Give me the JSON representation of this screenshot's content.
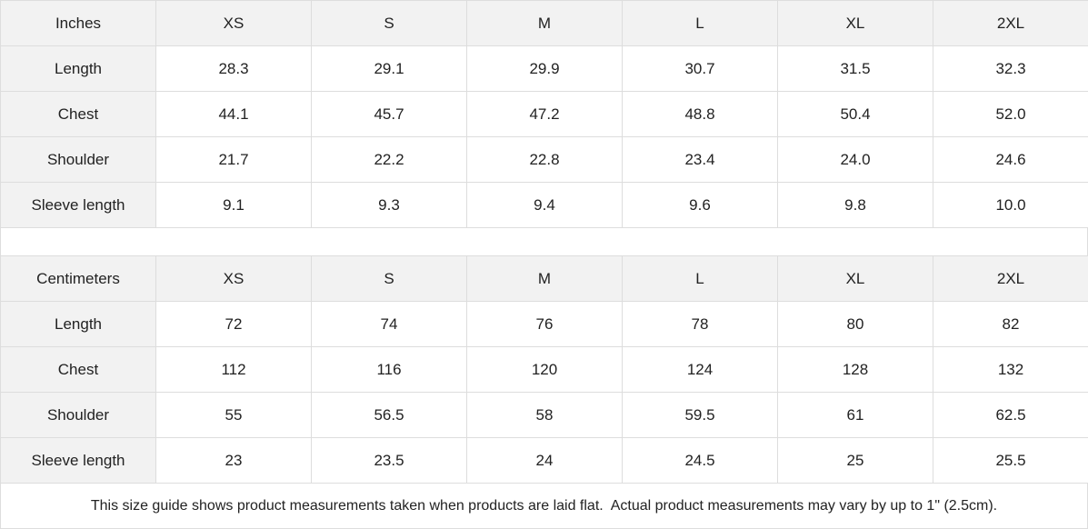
{
  "tables": [
    {
      "header": [
        "Inches",
        "XS",
        "S",
        "M",
        "L",
        "XL",
        "2XL"
      ],
      "rows": [
        [
          "Length",
          "28.3",
          "29.1",
          "29.9",
          "30.7",
          "31.5",
          "32.3"
        ],
        [
          "Chest",
          "44.1",
          "45.7",
          "47.2",
          "48.8",
          "50.4",
          "52.0"
        ],
        [
          "Shoulder",
          "21.7",
          "22.2",
          "22.8",
          "23.4",
          "24.0",
          "24.6"
        ],
        [
          "Sleeve length",
          "9.1",
          "9.3",
          "9.4",
          "9.6",
          "9.8",
          "10.0"
        ]
      ]
    },
    {
      "header": [
        "Centimeters",
        "XS",
        "S",
        "M",
        "L",
        "XL",
        "2XL"
      ],
      "rows": [
        [
          "Length",
          "72",
          "74",
          "76",
          "78",
          "80",
          "82"
        ],
        [
          "Chest",
          "112",
          "116",
          "120",
          "124",
          "128",
          "132"
        ],
        [
          "Shoulder",
          "55",
          "56.5",
          "58",
          "59.5",
          "61",
          "62.5"
        ],
        [
          "Sleeve length",
          "23",
          "23.5",
          "24",
          "24.5",
          "25",
          "25.5"
        ]
      ]
    }
  ],
  "note": "This size guide shows product measurements taken when products are laid flat.  Actual product measurements may vary by up to 1\" (2.5cm)."
}
